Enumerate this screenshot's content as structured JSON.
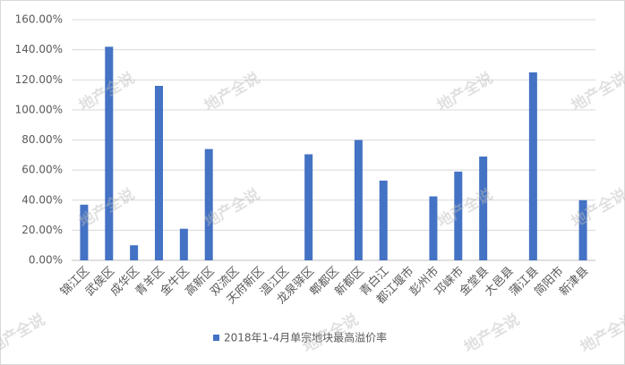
{
  "chart_data": {
    "type": "bar",
    "categories": [
      "锦江区",
      "武侯区",
      "成华区",
      "青羊区",
      "金牛区",
      "高新区",
      "双流区",
      "天府新区",
      "温江区",
      "龙泉驿区",
      "郫都区",
      "新都区",
      "青白江",
      "都江堰市",
      "彭州市",
      "邛崃市",
      "金堂县",
      "大邑县",
      "蒲江县",
      "简阳市",
      "新津县"
    ],
    "series": [
      {
        "name": "2018年1-4月单宗地块最高溢价率",
        "color": "#4472c4",
        "values": [
          37,
          142,
          10,
          116,
          21,
          74,
          0,
          0,
          0,
          70.5,
          0,
          80,
          53,
          0,
          42.5,
          59,
          69,
          0,
          125,
          0,
          40
        ]
      }
    ],
    "ylim": [
      0,
      160
    ],
    "yticks": [
      {
        "value": 0,
        "label": "0.00%"
      },
      {
        "value": 20,
        "label": "20.00%"
      },
      {
        "value": 40,
        "label": "40.00%"
      },
      {
        "value": 60,
        "label": "60.00%"
      },
      {
        "value": 80,
        "label": "80.00%"
      },
      {
        "value": 100,
        "label": "100.00%"
      },
      {
        "value": 120,
        "label": "120.00%"
      },
      {
        "value": 140,
        "label": "140.00%"
      },
      {
        "value": 160,
        "label": "160.00%"
      }
    ],
    "grid": true,
    "legend": "bottom",
    "watermark": "地产全说"
  }
}
